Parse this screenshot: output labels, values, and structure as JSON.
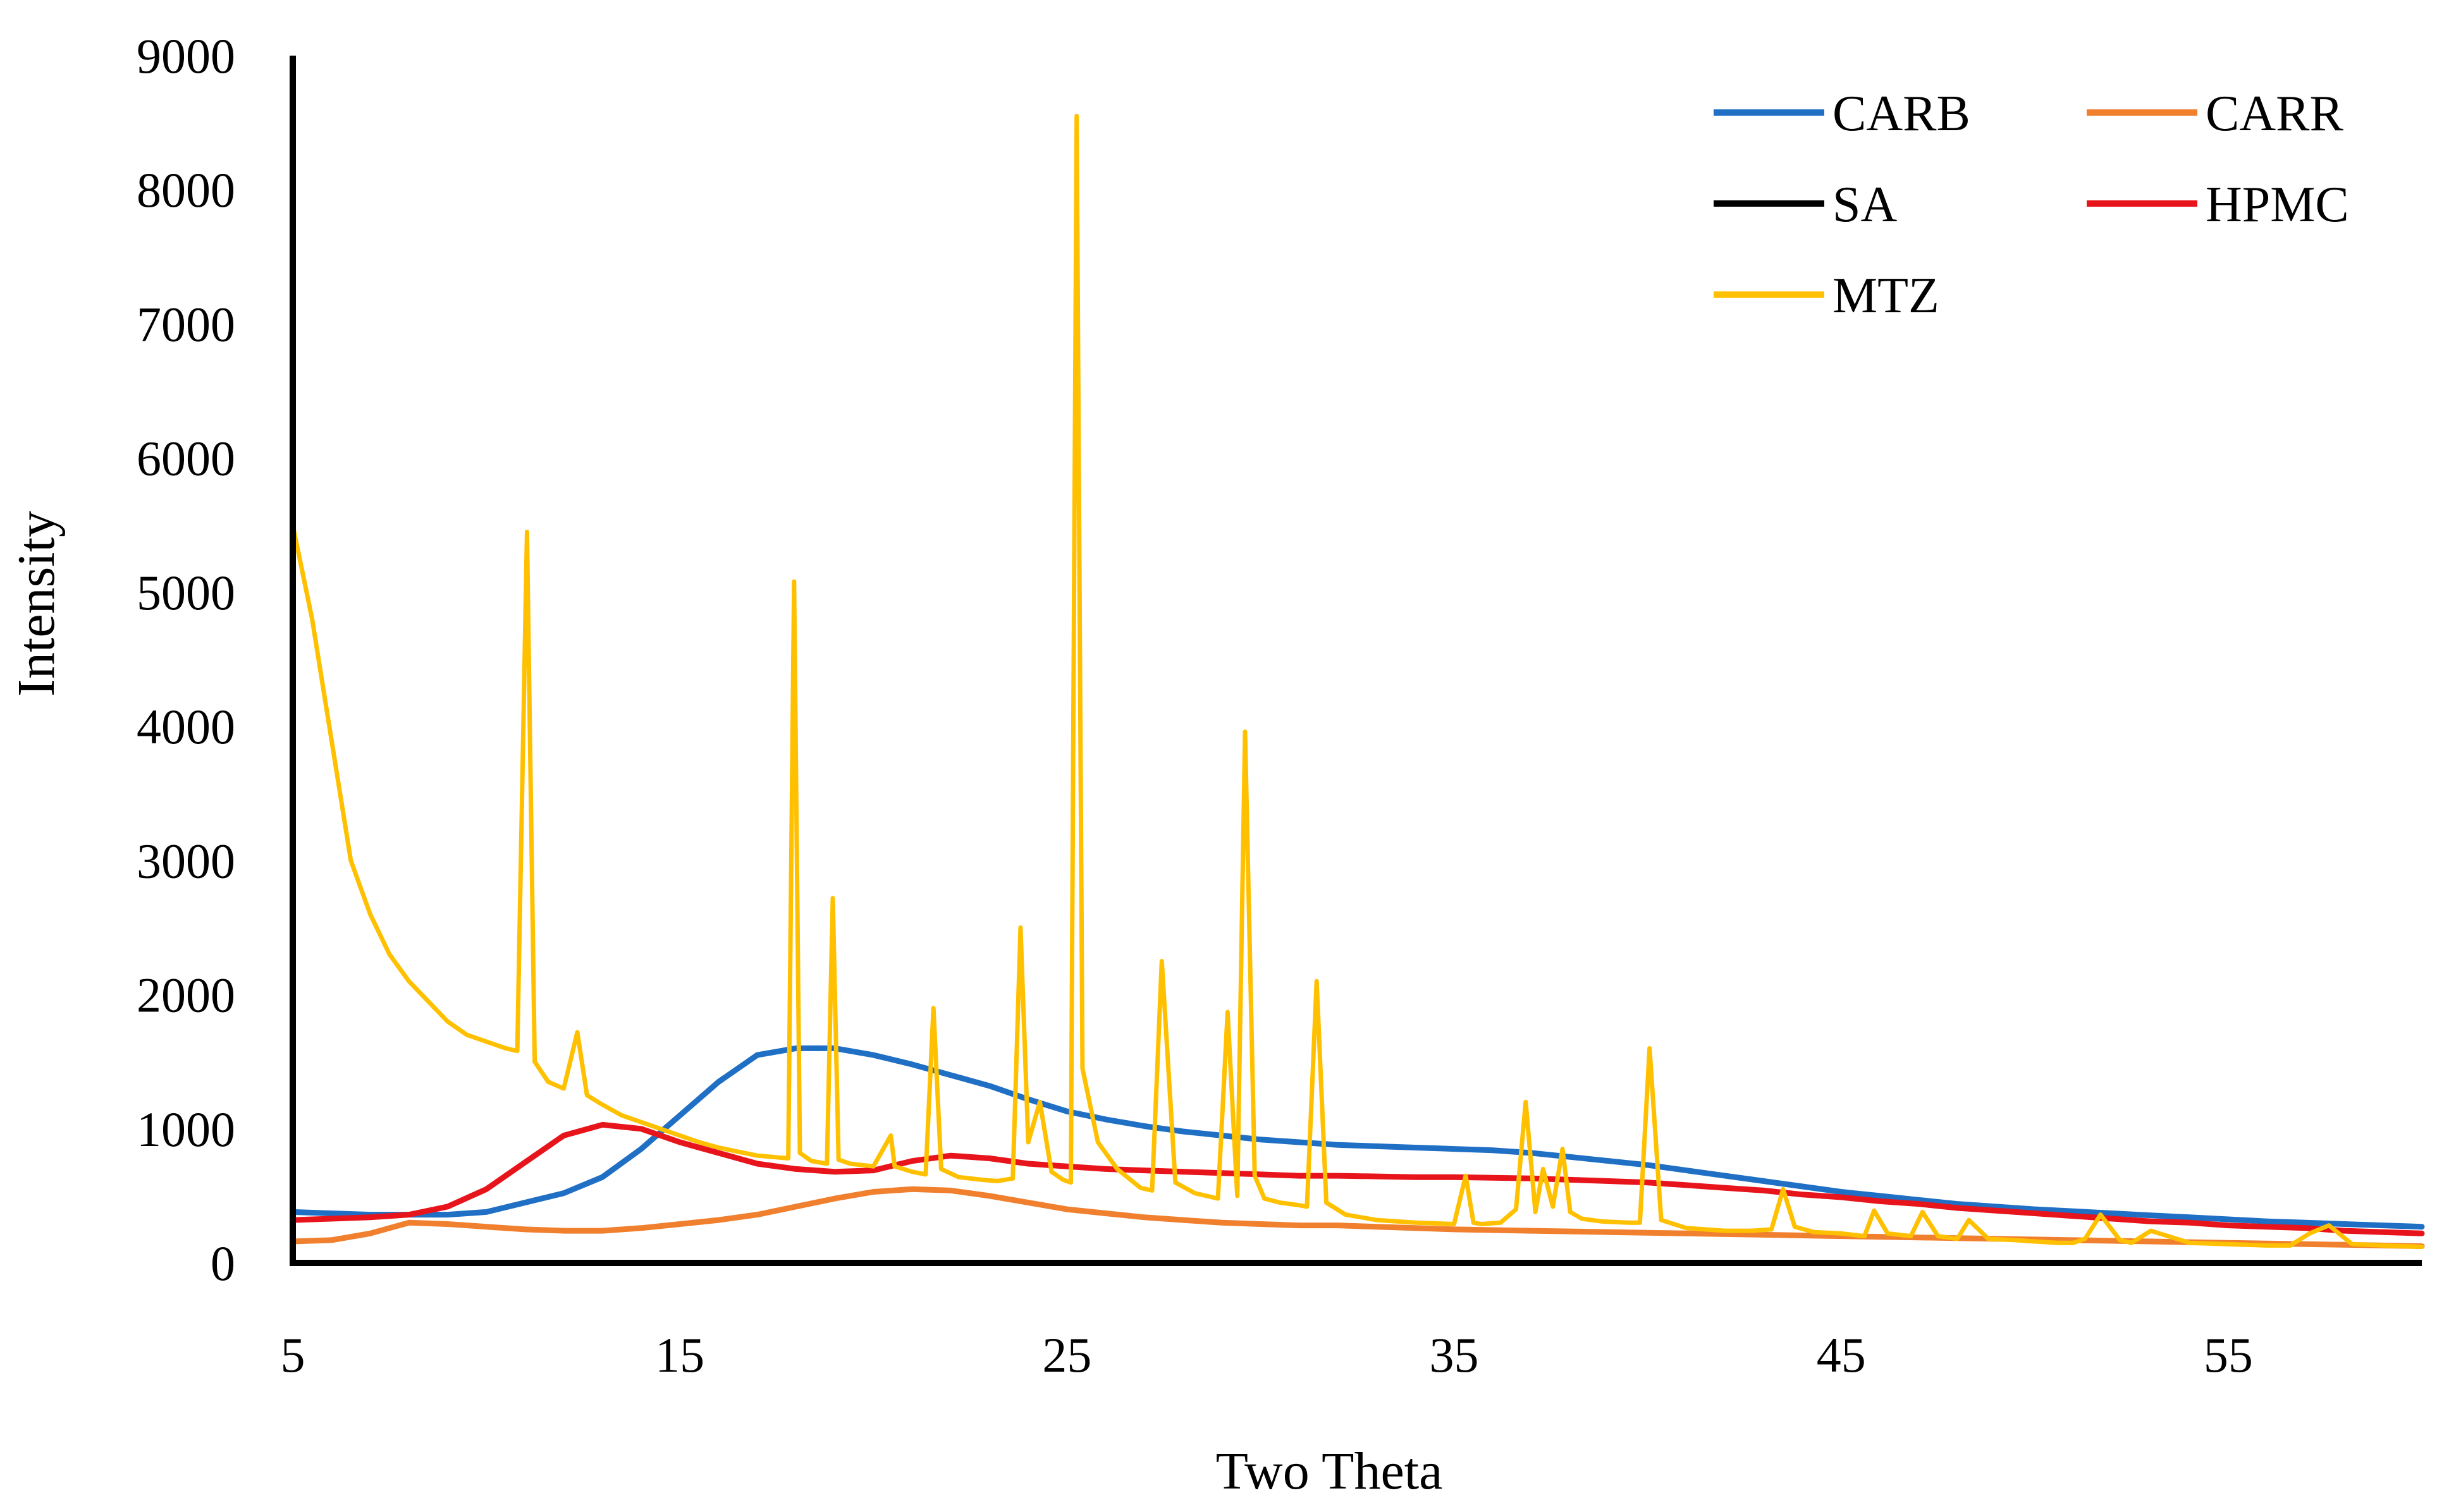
{
  "chart_data": {
    "type": "line",
    "title": "",
    "xlabel": "Two Theta",
    "ylabel": "Intensity",
    "xlim": [
      5,
      60
    ],
    "ylim": [
      0,
      9000
    ],
    "xticks": [
      5,
      15,
      25,
      35,
      45,
      55
    ],
    "yticks": [
      0,
      1000,
      2000,
      3000,
      4000,
      5000,
      6000,
      7000,
      8000,
      9000
    ],
    "grid": false,
    "legend_position": "top-right",
    "series": [
      {
        "name": "CARB",
        "color": "#1f6fc5",
        "x": [
          5,
          6,
          7,
          8,
          9,
          10,
          11,
          12,
          13,
          14,
          15,
          16,
          17,
          18,
          19,
          20,
          21,
          22,
          23,
          24,
          25,
          26,
          27,
          28,
          29,
          30,
          31,
          32,
          33,
          34,
          35,
          36,
          37,
          38,
          39,
          40,
          41,
          42,
          43,
          44,
          45,
          46,
          47,
          48,
          49,
          50,
          51,
          52,
          53,
          54,
          55,
          56,
          57,
          58,
          59,
          60
        ],
        "y": [
          380,
          370,
          360,
          360,
          360,
          380,
          450,
          520,
          640,
          850,
          1100,
          1350,
          1550,
          1600,
          1600,
          1550,
          1480,
          1400,
          1320,
          1220,
          1130,
          1070,
          1020,
          980,
          950,
          920,
          900,
          880,
          870,
          860,
          850,
          840,
          820,
          790,
          760,
          730,
          690,
          650,
          610,
          570,
          530,
          500,
          470,
          440,
          420,
          400,
          385,
          370,
          355,
          340,
          325,
          310,
          300,
          290,
          280,
          270
        ]
      },
      {
        "name": "CARR",
        "color": "#f07f2e",
        "x": [
          5,
          6,
          7,
          8,
          9,
          10,
          11,
          12,
          13,
          14,
          15,
          16,
          17,
          18,
          19,
          20,
          21,
          22,
          23,
          24,
          25,
          26,
          27,
          28,
          29,
          30,
          31,
          32,
          33,
          34,
          35,
          36,
          37,
          38,
          39,
          40,
          41,
          42,
          43,
          44,
          45,
          46,
          47,
          48,
          49,
          50,
          51,
          52,
          53,
          54,
          55,
          56,
          57,
          58,
          59,
          60
        ],
        "y": [
          160,
          170,
          220,
          300,
          290,
          270,
          250,
          240,
          240,
          260,
          290,
          320,
          360,
          420,
          480,
          530,
          550,
          540,
          500,
          450,
          400,
          370,
          340,
          320,
          300,
          290,
          280,
          280,
          270,
          260,
          250,
          245,
          240,
          235,
          230,
          225,
          220,
          215,
          210,
          205,
          200,
          195,
          190,
          185,
          180,
          175,
          170,
          165,
          160,
          155,
          150,
          145,
          140,
          135,
          130,
          125
        ]
      },
      {
        "name": "SA",
        "color": "#000000",
        "x": [],
        "y": []
      },
      {
        "name": "HPMC",
        "color": "#e8141c",
        "x": [
          5,
          6,
          7,
          8,
          9,
          10,
          11,
          12,
          13,
          14,
          15,
          16,
          17,
          18,
          19,
          20,
          21,
          22,
          23,
          24,
          25,
          26,
          27,
          28,
          29,
          30,
          31,
          32,
          33,
          34,
          35,
          36,
          37,
          38,
          39,
          40,
          41,
          42,
          43,
          44,
          45,
          46,
          47,
          48,
          49,
          50,
          51,
          52,
          53,
          54,
          55,
          56,
          57,
          58,
          59,
          60
        ],
        "y": [
          320,
          330,
          340,
          360,
          420,
          550,
          750,
          950,
          1030,
          1000,
          900,
          820,
          740,
          700,
          680,
          690,
          760,
          800,
          780,
          740,
          720,
          700,
          690,
          680,
          670,
          660,
          650,
          650,
          645,
          640,
          640,
          635,
          630,
          620,
          610,
          600,
          580,
          560,
          540,
          510,
          490,
          460,
          440,
          410,
          390,
          370,
          350,
          330,
          310,
          300,
          280,
          270,
          260,
          240,
          230,
          220
        ]
      },
      {
        "name": "MTZ",
        "color": "#ffc000",
        "x": [
          5,
          5.5,
          6,
          6.5,
          7,
          7.5,
          8,
          8.5,
          9,
          9.5,
          10,
          10.5,
          10.8,
          11.05,
          11.25,
          11.6,
          12,
          12.35,
          12.6,
          13,
          13.5,
          14,
          14.5,
          15,
          15.5,
          16,
          16.5,
          17,
          17.4,
          17.8,
          17.95,
          18.1,
          18.4,
          18.8,
          18.95,
          19.1,
          19.4,
          20,
          20.45,
          20.55,
          21,
          21.35,
          21.55,
          21.75,
          22.2,
          22.8,
          23.2,
          23.6,
          23.8,
          24,
          24.3,
          24.6,
          24.9,
          25.1,
          25.25,
          25.4,
          25.8,
          26.3,
          26.9,
          27.2,
          27.45,
          27.8,
          28.3,
          28.9,
          29.15,
          29.4,
          29.6,
          29.85,
          30.1,
          30.5,
          31,
          31.2,
          31.45,
          31.7,
          32.2,
          33,
          34,
          35,
          35.3,
          35.5,
          35.7,
          36.2,
          36.6,
          36.85,
          37.1,
          37.3,
          37.55,
          37.8,
          38,
          38.3,
          38.8,
          39.5,
          39.8,
          40.05,
          40.35,
          41,
          42,
          42.7,
          43.2,
          43.5,
          43.8,
          44.3,
          45,
          45.6,
          45.85,
          46.2,
          46.8,
          47.1,
          47.5,
          48,
          48.3,
          48.8,
          49.5,
          50,
          50.6,
          51,
          51.3,
          51.7,
          52.2,
          52.5,
          53,
          54,
          55,
          56,
          56.6,
          57.1,
          57.6,
          58.2,
          59,
          60
        ],
        "y": [
          5500,
          4800,
          3900,
          3000,
          2600,
          2300,
          2100,
          1950,
          1800,
          1700,
          1650,
          1600,
          1580,
          5450,
          1500,
          1350,
          1300,
          1720,
          1250,
          1180,
          1100,
          1050,
          1000,
          950,
          900,
          860,
          830,
          800,
          790,
          780,
          5080,
          820,
          760,
          740,
          2720,
          770,
          740,
          720,
          950,
          720,
          680,
          660,
          1900,
          700,
          640,
          620,
          610,
          630,
          2500,
          900,
          1200,
          680,
          620,
          600,
          8550,
          1450,
          900,
          700,
          560,
          540,
          2250,
          600,
          520,
          480,
          1870,
          500,
          3960,
          650,
          480,
          450,
          430,
          420,
          2100,
          450,
          360,
          320,
          300,
          290,
          650,
          300,
          290,
          300,
          400,
          1200,
          380,
          700,
          420,
          850,
          380,
          330,
          310,
          300,
          300,
          1600,
          320,
          260,
          240,
          240,
          250,
          550,
          270,
          230,
          220,
          200,
          390,
          220,
          200,
          380,
          200,
          180,
          320,
          180,
          170,
          160,
          150,
          150,
          180,
          360,
          170,
          150,
          240,
          150,
          140,
          130,
          130,
          220,
          280,
          140,
          130,
          120
        ]
      }
    ]
  }
}
